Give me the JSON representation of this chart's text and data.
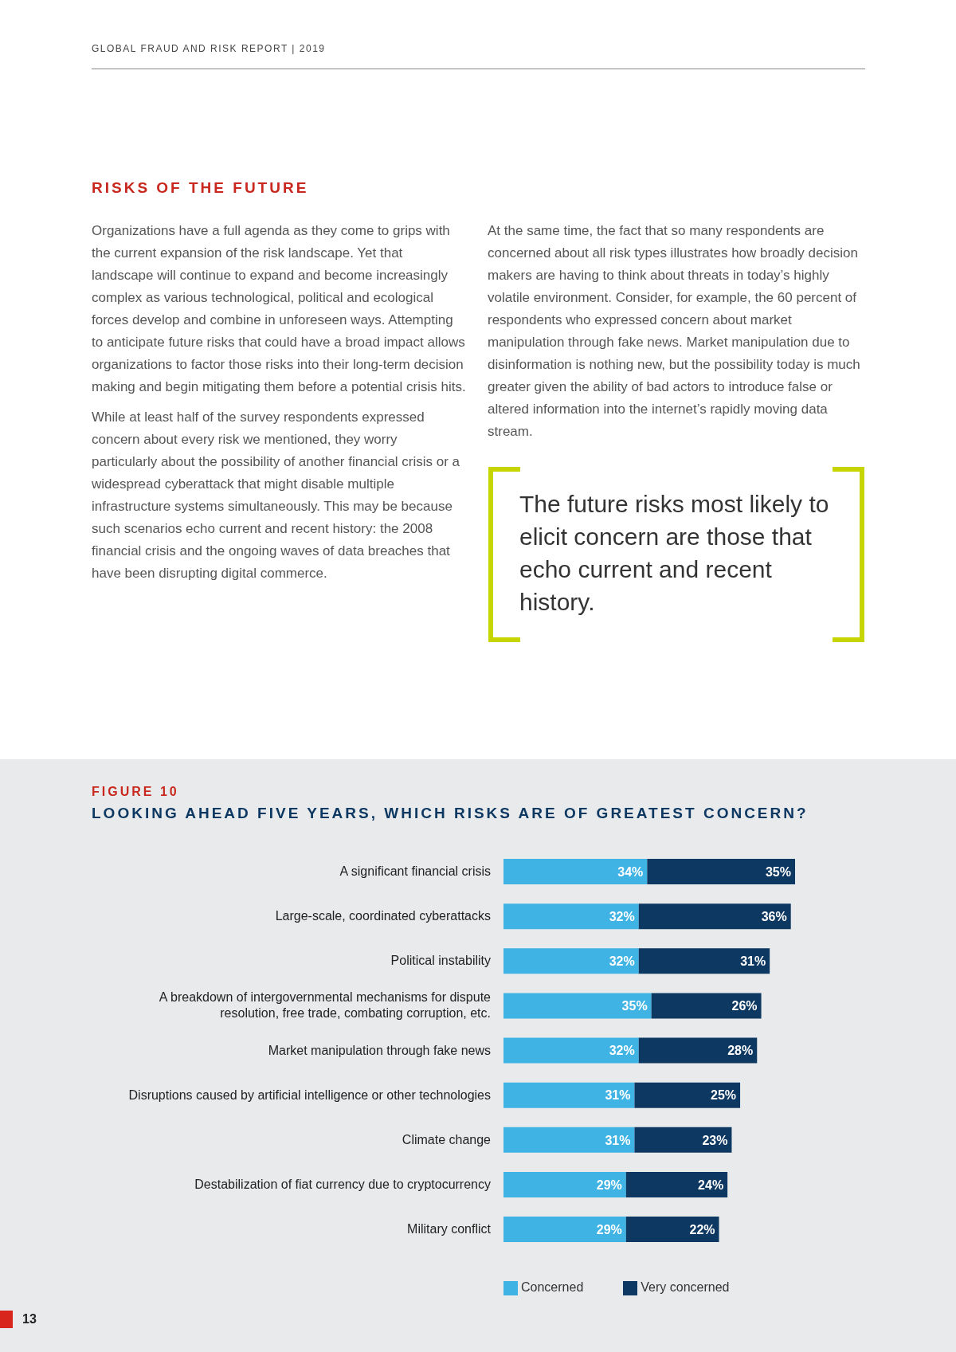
{
  "chart_data": {
    "type": "bar",
    "orientation": "horizontal",
    "stacked": true,
    "title": "LOOKING AHEAD FIVE YEARS, WHICH RISKS ARE OF GREATEST CONCERN?",
    "subtitle": "FIGURE 10",
    "categories": [
      "A significant financial crisis",
      "Large-scale, coordinated cyberattacks",
      "Political instability",
      "A breakdown of intergovernmental mechanisms for dispute resolution, free trade, combating corruption, etc.",
      "Market manipulation through fake news",
      "Disruptions caused by artificial intelligence or other technologies",
      "Climate change",
      "Destabilization of fiat currency due to cryptocurrency",
      "Military conflict"
    ],
    "series": [
      {
        "name": "Concerned",
        "color": "#3fb3e4",
        "values": [
          34,
          32,
          32,
          35,
          32,
          31,
          31,
          29,
          29
        ],
        "value_labels": [
          "34%",
          "32%",
          "32%",
          "35%",
          "32%",
          "31%",
          "31%",
          "29%",
          "29%"
        ]
      },
      {
        "name": "Very concerned",
        "color": "#0d3862",
        "values": [
          35,
          36,
          31,
          26,
          28,
          25,
          23,
          24,
          22
        ],
        "value_labels": [
          "35%",
          "36%",
          "31%",
          "26%",
          "28%",
          "25%",
          "23%",
          "24%",
          "22%"
        ]
      }
    ],
    "legend": "bottom",
    "tick_labels": "y",
    "annotations": [
      "GLOBAL FRAUD AND RISK REPORT | 2019",
      "RISKS OF THE FUTURE",
      "Organizations have a full agenda as they come to grips with the current expansion of the risk landscape. Yet that landscape will continue to expand and become increasingly complex as various technological, political and ecological forces develop and combine in unforeseen ways. Attempting to anticipate future risks that could have a broad impact allows organizations to factor those risks into their long-term decision making and begin mitigating them before a potential crisis hits.",
      "While at least half of the survey respondents expressed concern about every risk we mentioned, they worry particularly about the possibility of another financial crisis or a widespread cyberattack that might disable multiple infrastructure systems simultaneously. This may be because such scenarios echo current and recent history: the 2008 financial crisis and the ongoing waves of data breaches that have been disrupting digital commerce.",
      "At the same time, the fact that so many respondents are concerned about all risk types illustrates how broadly decision makers are having to think about threats in today’s highly volatile environment. Consider, for example, the 60 percent of respondents who expressed concern about market manipulation through fake news. Market manipulation due to disinformation is nothing new, but the possibility today is much greater given the ability of bad actors to introduce false or altered information into the internet’s rapidly moving data stream.",
      "The future risks most likely to elicit concern are those that echo current and recent history.",
      "13"
    ]
  }
}
